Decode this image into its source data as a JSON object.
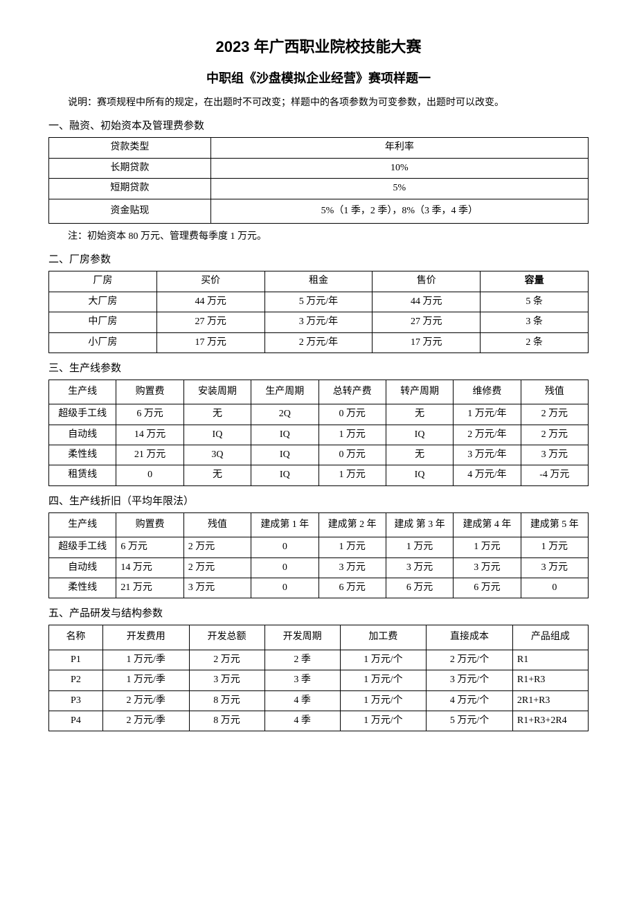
{
  "titles": {
    "main": "2023 年广西职业院校技能大赛",
    "sub": "中职组《沙盘模拟企业经营》赛项样题一"
  },
  "intro": "说明：赛项规程中所有的规定，在出题时不可改变；样题中的各项参数为可变参数，出题时可以改变。",
  "sections": {
    "s1": "一、融资、初始资本及管理费参数",
    "s2": "二、厂房参数",
    "s3": "三、生产线参数",
    "s4": "四、生产线折旧（平均年限法）",
    "s5": "五、产品研发与结构参数"
  },
  "table1": {
    "headers": [
      "贷款类型",
      "年利率"
    ],
    "rows": [
      [
        "长期贷款",
        "10%"
      ],
      [
        "短期贷款",
        "5%"
      ],
      [
        "资金贴现",
        "5%（1 季，2 季），8%（3 季，4 季）"
      ]
    ],
    "note": "注：初始资本 80 万元、管理费每季度 1 万元。"
  },
  "table2": {
    "headers": [
      "厂房",
      "买价",
      "租金",
      "售价",
      "容量"
    ],
    "rows": [
      [
        "大厂房",
        "44 万元",
        "5 万元/年",
        "44 万元",
        "5 条"
      ],
      [
        "中厂房",
        "27 万元",
        "3 万元/年",
        "27 万元",
        "3 条"
      ],
      [
        "小厂房",
        "17 万元",
        "2 万元/年",
        "17 万元",
        "2 条"
      ]
    ]
  },
  "table3": {
    "headers": [
      "生产线",
      "购置费",
      "安装周期",
      "生产周期",
      "总转产费",
      "转产周期",
      "维修费",
      "残值"
    ],
    "rows": [
      [
        "超级手工线",
        "6 万元",
        "无",
        "2Q",
        "0 万元",
        "无",
        "1 万元/年",
        "2 万元"
      ],
      [
        "自动线",
        "14 万元",
        "IQ",
        "IQ",
        "1 万元",
        "IQ",
        "2 万元/年",
        "2 万元"
      ],
      [
        "柔性线",
        "21 万元",
        "3Q",
        "IQ",
        "0 万元",
        "无",
        "3 万元/年",
        "3 万元"
      ],
      [
        "租赁线",
        "0",
        "无",
        "IQ",
        "1 万元",
        "IQ",
        "4 万元/年",
        "-4 万元"
      ]
    ]
  },
  "table4": {
    "headers": [
      "生产线",
      "购置费",
      "残值",
      "建成第 1 年",
      "建成第 2 年",
      "建成 第 3 年",
      "建成第 4 年",
      "建成第 5 年"
    ],
    "rows": [
      [
        "超级手工线",
        "6 万元",
        "2 万元",
        "0",
        "1 万元",
        "1 万元",
        "1 万元",
        "1 万元"
      ],
      [
        "自动线",
        "14 万元",
        "2 万元",
        "0",
        "3 万元",
        "3 万元",
        "3 万元",
        "3 万元"
      ],
      [
        "柔性线",
        "21 万元",
        "3 万元",
        "0",
        "6 万元",
        "6 万元",
        "6 万元",
        "0"
      ]
    ]
  },
  "table5": {
    "headers": [
      "名称",
      "开发费用",
      "开发总额",
      "开发周期",
      "加工费",
      "直接成本",
      "产品组成"
    ],
    "rows": [
      [
        "P1",
        "1 万元/季",
        "2 万元",
        "2 季",
        "1 万元/个",
        "2 万元/个",
        "R1"
      ],
      [
        "P2",
        "1 万元/季",
        "3 万元",
        "3 季",
        "1 万元/个",
        "3 万元/个",
        "R1+R3"
      ],
      [
        "P3",
        "2 万元/季",
        "8 万元",
        "4 季",
        "1 万元/个",
        "4 万元/个",
        "2R1+R3"
      ],
      [
        "P4",
        "2 万元/季",
        "8 万元",
        "4 季",
        "1 万元/个",
        "5 万元/个",
        "R1+R3+2R4"
      ]
    ]
  }
}
